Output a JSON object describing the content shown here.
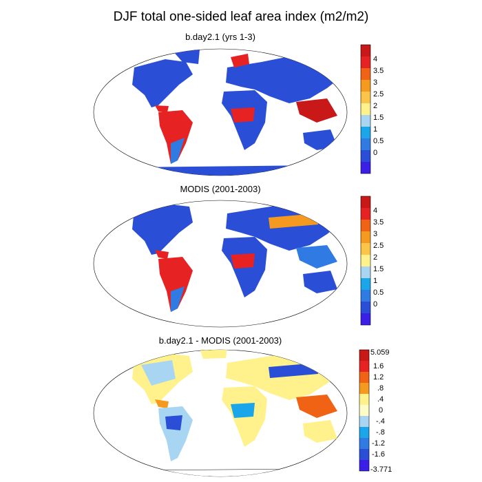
{
  "figure": {
    "title": "DJF total one-sided leaf area index (m2/m2)"
  },
  "panels": [
    {
      "title": "b.day2.1 (yrs 1-3)",
      "colorbar": {
        "colors": [
          "#3c1fe6",
          "#2a4fd6",
          "#2f7be3",
          "#1aa6e8",
          "#a8d6f2",
          "#fff28c",
          "#fbc54a",
          "#f59a1e",
          "#f06214",
          "#e62222",
          "#c81818"
        ],
        "labels": [
          "0",
          "0.5",
          "1",
          "1.5",
          "2",
          "2.5",
          "3",
          "3.5",
          "4"
        ]
      }
    },
    {
      "title": "MODIS (2001-2003)",
      "colorbar": {
        "colors": [
          "#3c1fe6",
          "#2a4fd6",
          "#2f7be3",
          "#1aa6e8",
          "#a8d6f2",
          "#fff28c",
          "#fbc54a",
          "#f59a1e",
          "#f06214",
          "#e62222",
          "#c81818"
        ],
        "labels": [
          "0",
          "0.5",
          "1",
          "1.5",
          "2",
          "2.5",
          "3",
          "3.5",
          "4"
        ]
      }
    },
    {
      "title": "b.day2.1 - MODIS (2001-2003)",
      "colorbar": {
        "colors": [
          "#c81818",
          "#e62222",
          "#f06214",
          "#f59a1e",
          "#fff28c",
          "#fffcc8",
          "#a8d6f2",
          "#1aa6e8",
          "#2f7be3",
          "#2a4fd6",
          "#3c1fe6"
        ],
        "labels": [
          "5.059",
          "1.6",
          "1.2",
          ".8",
          ".4",
          "0",
          "-.4",
          "-.8",
          "-1.2",
          "-1.6",
          "-3.771"
        ]
      }
    }
  ]
}
